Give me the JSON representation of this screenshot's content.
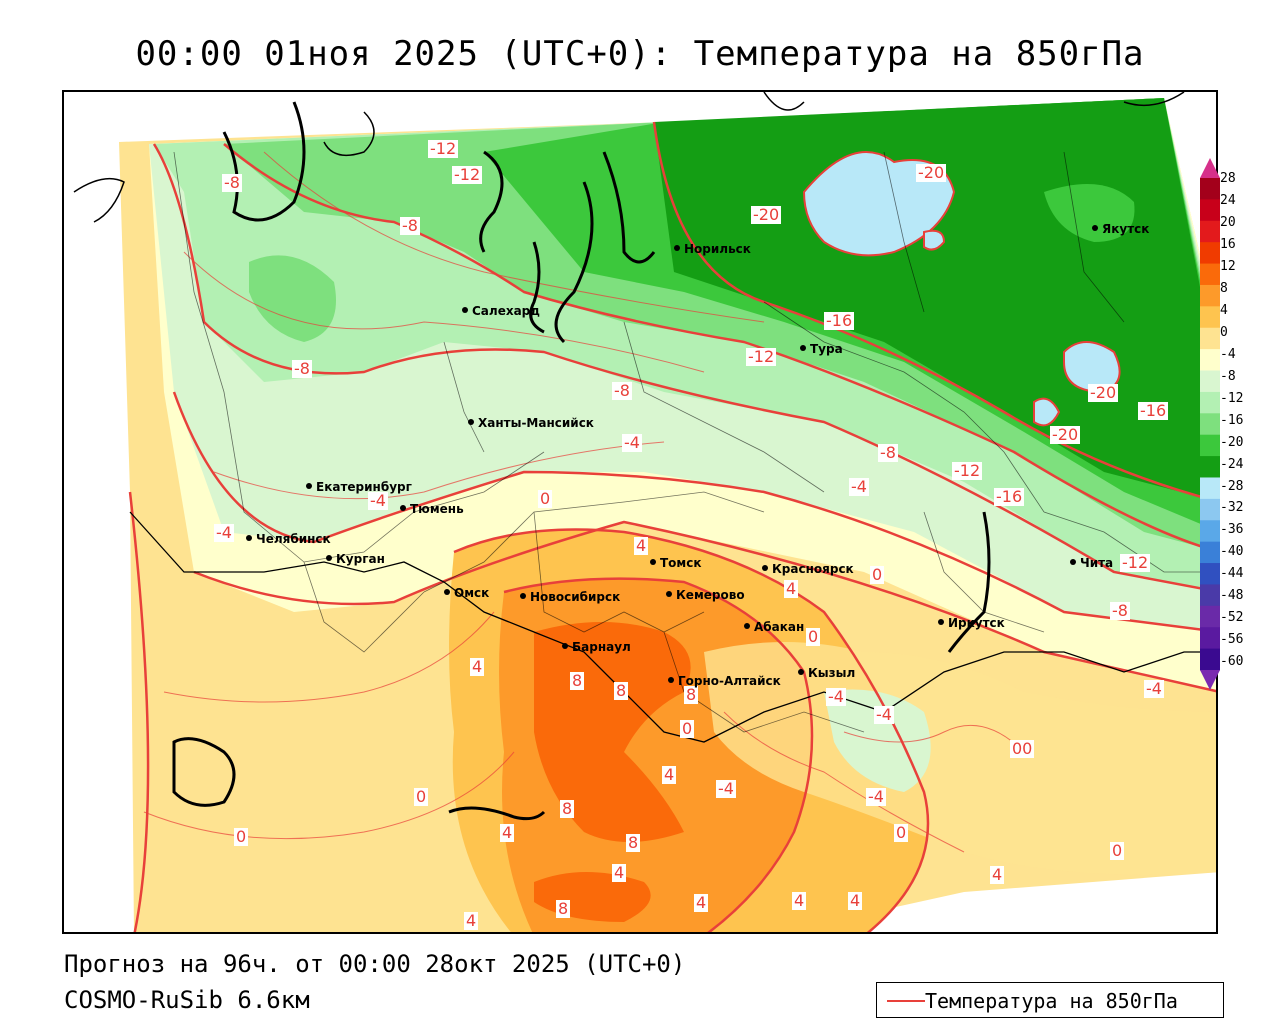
{
  "title": "00:00 01ноя 2025 (UTC+0): Температура на 850гПа",
  "forecast_line": "Прогноз на 96ч. от 00:00 28окт 2025 (UTC+0)",
  "model_line": "COSMO-RuSib 6.6км",
  "legend": {
    "label": "Температура на 850гПа",
    "line_color": "#e8403a"
  },
  "colorbar": {
    "ticks": [
      "28",
      "24",
      "20",
      "16",
      "12",
      "8",
      "4",
      "0",
      "-4",
      "-8",
      "-12",
      "-16",
      "-20",
      "-24",
      "-28",
      "-32",
      "-36",
      "-40",
      "-44",
      "-48",
      "-52",
      "-56",
      "-60"
    ],
    "colors": [
      "#a3001b",
      "#c8001a",
      "#e31a1c",
      "#f03b00",
      "#fa6a0a",
      "#fd9a2a",
      "#fec44f",
      "#fee391",
      "#ffffcc",
      "#d9f6d0",
      "#b3f0b3",
      "#7ee07e",
      "#3cc83c",
      "#149e14",
      "#b8e8f8",
      "#8cc8f0",
      "#5aa8e8",
      "#3a80d8",
      "#3050c0",
      "#4a3aa8",
      "#6a2aa8",
      "#5a1aa0",
      "#3a0a90"
    ]
  },
  "cities": [
    {
      "name": "Норильск"
    },
    {
      "name": "Якутск"
    },
    {
      "name": "Салехард"
    },
    {
      "name": "Тура"
    },
    {
      "name": "Ханты-Мансийск"
    },
    {
      "name": "Екатеринбург"
    },
    {
      "name": "Тюмень"
    },
    {
      "name": "Челябинск"
    },
    {
      "name": "Курган"
    },
    {
      "name": "Омск"
    },
    {
      "name": "Новосибирск"
    },
    {
      "name": "Томск"
    },
    {
      "name": "Красноярск"
    },
    {
      "name": "Кемерово"
    },
    {
      "name": "Барнаул"
    },
    {
      "name": "Абакан"
    },
    {
      "name": "Горно-Алтайск"
    },
    {
      "name": "Кызыл"
    },
    {
      "name": "Иркутск"
    },
    {
      "name": "Чита"
    }
  ],
  "contour_labels": [
    "-8",
    "-12",
    "-8",
    "-20",
    "-20",
    "-12",
    "-16",
    "-8",
    "-8",
    "-4",
    "-4",
    "-4",
    "0",
    "-8",
    "-4",
    "-12",
    "-16",
    "-20",
    "-20",
    "-16",
    "-12",
    "-8",
    "-4",
    "4",
    "0",
    "4",
    "4",
    "8",
    "8",
    "8",
    "0",
    "-4",
    "0",
    "-4",
    "00",
    "4",
    "4",
    "0",
    "8",
    "8",
    "4",
    "0",
    "-4",
    "-4",
    "0",
    "4",
    "4",
    "4",
    "4",
    "8",
    "-12",
    "0",
    "4"
  ]
}
